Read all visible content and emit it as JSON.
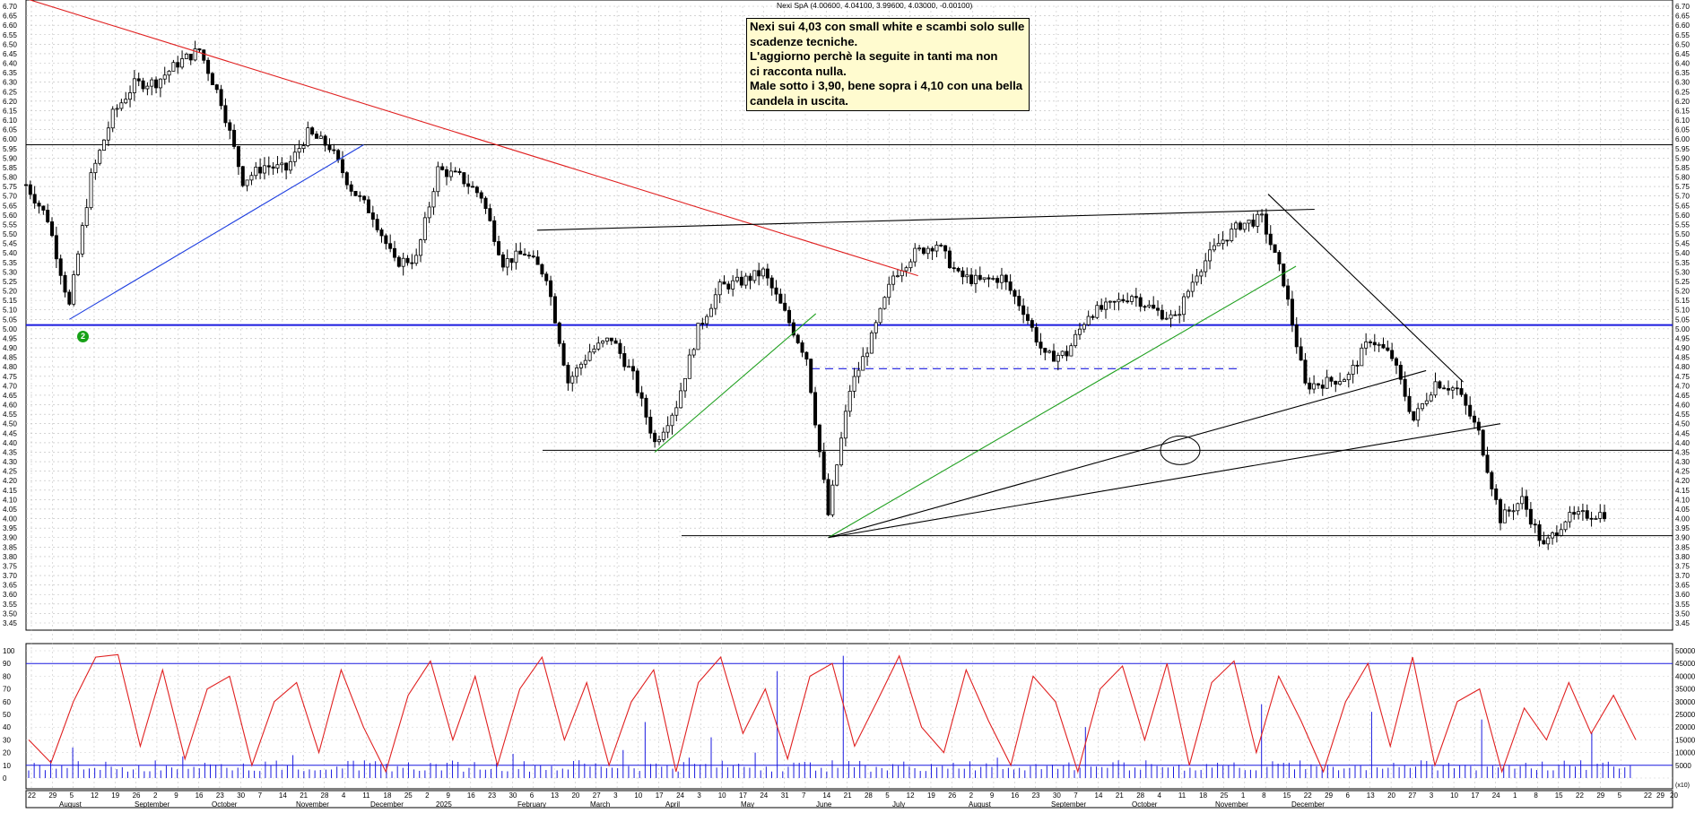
{
  "header": {
    "info": "Nexi SpA (4.00600, 4.04100, 3.99600, 4.03000, -0.00100)"
  },
  "annotation": {
    "lines": [
      "Nexi sui 4,03 con small white e scambi solo sulle",
      "scadenze tecniche.",
      "L'aggiorno perchè la seguite in tanti ma non",
      "ci racconta nulla.",
      "Male sotto i 3,90, bene sopra i 4,10 con una bella",
      "candela in uscita."
    ]
  },
  "signal_badge": "2",
  "colors": {
    "candle": "#000000",
    "resistance_trendline": "#e02020",
    "support_trendline": "#2040e0",
    "channel_line": "#20a020",
    "horizontal_level": "#1a1adf",
    "oscillator_line": "#e02020",
    "oscillator_levels": "#1a1adf",
    "volume_bars": "#1a1adf"
  },
  "price_axis": {
    "ticks": [
      "6.70",
      "6.65",
      "6.60",
      "6.55",
      "6.50",
      "6.45",
      "6.40",
      "6.35",
      "6.30",
      "6.25",
      "6.20",
      "6.15",
      "6.10",
      "6.05",
      "6.00",
      "5.95",
      "5.90",
      "5.85",
      "5.80",
      "5.75",
      "5.70",
      "5.65",
      "5.60",
      "5.55",
      "5.50",
      "5.45",
      "5.40",
      "5.35",
      "5.30",
      "5.25",
      "5.20",
      "5.15",
      "5.10",
      "5.05",
      "5.00",
      "4.95",
      "4.90",
      "4.85",
      "4.80",
      "4.75",
      "4.70",
      "4.65",
      "4.60",
      "4.55",
      "4.50",
      "4.45",
      "4.40",
      "4.35",
      "4.30",
      "4.25",
      "4.20",
      "4.15",
      "4.10",
      "4.05",
      "4.00",
      "3.95",
      "3.90",
      "3.85",
      "3.80",
      "3.75",
      "3.70",
      "3.65",
      "3.60",
      "3.55",
      "3.50",
      "3.45"
    ]
  },
  "oscillator_axis": {
    "ticks": [
      "100",
      "90",
      "80",
      "70",
      "60",
      "50",
      "40",
      "30",
      "20",
      "10",
      "0"
    ]
  },
  "volume_axis": {
    "ticks": [
      "50000",
      "45000",
      "40000",
      "35000",
      "30000",
      "25000",
      "20000",
      "15000",
      "10000",
      "5000"
    ],
    "unit": "(x10)"
  },
  "x_axis": {
    "day_ticks": [
      "22",
      "29",
      "5",
      "12",
      "19",
      "26",
      "2",
      "9",
      "16",
      "23",
      "30",
      "7",
      "14",
      "21",
      "28",
      "4",
      "11",
      "18",
      "25",
      "2",
      "9",
      "16",
      "23",
      "30",
      "6",
      "13",
      "20",
      "27",
      "3",
      "10",
      "17",
      "24",
      "3",
      "10",
      "17",
      "24",
      "31",
      "7",
      "14",
      "21",
      "28",
      "5",
      "12",
      "19",
      "26",
      "2",
      "9",
      "16",
      "23",
      "30",
      "7",
      "14",
      "21",
      "28",
      "4",
      "11",
      "18",
      "25",
      "1",
      "8",
      "15",
      "22",
      "29",
      "6",
      "13",
      "20",
      "27",
      "3",
      "10",
      "17",
      "24",
      "1",
      "8",
      "15",
      "22",
      "29",
      "5"
    ],
    "month_labels": [
      "August",
      "September",
      "October",
      "November",
      "December",
      "2025",
      "February",
      "March",
      "April",
      "May",
      "June",
      "July",
      "August",
      "September",
      "October",
      "November",
      "December"
    ],
    "right_day_labels": [
      "22",
      "29"
    ],
    "right_year_label": "20"
  },
  "chart_data": {
    "type": "candlestick",
    "security": "Nexi SpA",
    "last_bar": {
      "open": 4.006,
      "high": 4.041,
      "low": 3.996,
      "close": 4.03,
      "change": -0.001
    },
    "y_range": [
      3.45,
      6.7
    ],
    "horizontal_levels": [
      5.97,
      5.02,
      4.36,
      3.91
    ],
    "dashed_level": 4.79,
    "trendlines": [
      {
        "kind": "resistance",
        "from": {
          "date": "2024-07-22",
          "price": 6.74
        },
        "to": {
          "date": "2025-05-06",
          "price": 5.28
        }
      },
      {
        "kind": "support",
        "from": {
          "date": "2024-08-05",
          "price": 5.05
        },
        "to": {
          "date": "2024-11-08",
          "price": 5.97
        }
      },
      {
        "kind": "channel",
        "from": {
          "date": "2025-02-10",
          "price": 4.35
        },
        "to": {
          "date": "2025-04-03",
          "price": 5.08
        }
      },
      {
        "kind": "channel",
        "from": {
          "date": "2025-04-07",
          "price": 3.9
        },
        "to": {
          "date": "2025-09-05",
          "price": 5.33
        }
      },
      {
        "kind": "resistance",
        "from": {
          "date": "2025-01-03",
          "price": 5.52
        },
        "to": {
          "date": "2025-09-11",
          "price": 5.63
        }
      },
      {
        "kind": "resistance",
        "from": {
          "date": "2025-08-27",
          "price": 5.71
        },
        "to": {
          "date": "2025-10-29",
          "price": 4.72
        }
      },
      {
        "kind": "support",
        "from": {
          "date": "2025-04-07",
          "price": 3.9
        },
        "to": {
          "date": "2025-10-17",
          "price": 4.78
        }
      },
      {
        "kind": "support",
        "from": {
          "date": "2025-04-07",
          "price": 3.9
        },
        "to": {
          "date": "2025-11-10",
          "price": 4.5
        }
      }
    ],
    "price_series": [
      {
        "date": "2024-07-22",
        "close": 5.76
      },
      {
        "date": "2024-07-29",
        "close": 5.58
      },
      {
        "date": "2024-08-05",
        "close": 5.12
      },
      {
        "date": "2024-08-12",
        "close": 5.8
      },
      {
        "date": "2024-08-19",
        "close": 6.13
      },
      {
        "date": "2024-08-26",
        "close": 6.29
      },
      {
        "date": "2024-09-02",
        "close": 6.3
      },
      {
        "date": "2024-09-09",
        "close": 6.4
      },
      {
        "date": "2024-09-16",
        "close": 6.47
      },
      {
        "date": "2024-09-23",
        "close": 6.2
      },
      {
        "date": "2024-09-30",
        "close": 5.78
      },
      {
        "date": "2024-10-07",
        "close": 5.86
      },
      {
        "date": "2024-10-14",
        "close": 5.84
      },
      {
        "date": "2024-10-21",
        "close": 6.03
      },
      {
        "date": "2024-10-28",
        "close": 5.96
      },
      {
        "date": "2024-11-04",
        "close": 5.74
      },
      {
        "date": "2024-11-11",
        "close": 5.6
      },
      {
        "date": "2024-11-18",
        "close": 5.35
      },
      {
        "date": "2024-11-25",
        "close": 5.37
      },
      {
        "date": "2024-12-02",
        "close": 5.84
      },
      {
        "date": "2024-12-09",
        "close": 5.8
      },
      {
        "date": "2024-12-16",
        "close": 5.7
      },
      {
        "date": "2024-12-23",
        "close": 5.35
      },
      {
        "date": "2024-12-30",
        "close": 5.4
      },
      {
        "date": "2025-01-06",
        "close": 5.28
      },
      {
        "date": "2025-01-13",
        "close": 4.72
      },
      {
        "date": "2025-01-20",
        "close": 4.88
      },
      {
        "date": "2025-01-27",
        "close": 4.95
      },
      {
        "date": "2025-02-03",
        "close": 4.75
      },
      {
        "date": "2025-02-10",
        "close": 4.4
      },
      {
        "date": "2025-02-17",
        "close": 4.6
      },
      {
        "date": "2025-02-24",
        "close": 5.0
      },
      {
        "date": "2025-03-03",
        "close": 5.22
      },
      {
        "date": "2025-03-10",
        "close": 5.25
      },
      {
        "date": "2025-03-17",
        "close": 5.3
      },
      {
        "date": "2025-03-24",
        "close": 5.08
      },
      {
        "date": "2025-03-31",
        "close": 4.85
      },
      {
        "date": "2025-04-07",
        "close": 4.02
      },
      {
        "date": "2025-04-14",
        "close": 4.68
      },
      {
        "date": "2025-04-21",
        "close": 4.95
      },
      {
        "date": "2025-04-28",
        "close": 5.28
      },
      {
        "date": "2025-05-05",
        "close": 5.4
      },
      {
        "date": "2025-05-12",
        "close": 5.45
      },
      {
        "date": "2025-05-19",
        "close": 5.28
      },
      {
        "date": "2025-05-26",
        "close": 5.25
      },
      {
        "date": "2025-06-02",
        "close": 5.27
      },
      {
        "date": "2025-06-09",
        "close": 5.1
      },
      {
        "date": "2025-06-16",
        "close": 4.85
      },
      {
        "date": "2025-06-23",
        "close": 4.87
      },
      {
        "date": "2025-06-30",
        "close": 5.08
      },
      {
        "date": "2025-07-07",
        "close": 5.12
      },
      {
        "date": "2025-07-14",
        "close": 5.18
      },
      {
        "date": "2025-07-21",
        "close": 5.1
      },
      {
        "date": "2025-07-28",
        "close": 5.05
      },
      {
        "date": "2025-08-04",
        "close": 5.3
      },
      {
        "date": "2025-08-11",
        "close": 5.45
      },
      {
        "date": "2025-08-18",
        "close": 5.55
      },
      {
        "date": "2025-08-25",
        "close": 5.58
      },
      {
        "date": "2025-09-01",
        "close": 5.25
      },
      {
        "date": "2025-09-08",
        "close": 4.7
      },
      {
        "date": "2025-09-15",
        "close": 4.72
      },
      {
        "date": "2025-09-22",
        "close": 4.75
      },
      {
        "date": "2025-09-29",
        "close": 4.95
      },
      {
        "date": "2025-10-06",
        "close": 4.85
      },
      {
        "date": "2025-10-13",
        "close": 4.52
      },
      {
        "date": "2025-10-20",
        "close": 4.72
      },
      {
        "date": "2025-10-27",
        "close": 4.68
      },
      {
        "date": "2025-11-03",
        "close": 4.45
      },
      {
        "date": "2025-11-10",
        "close": 4.0
      },
      {
        "date": "2025-11-17",
        "close": 4.1
      },
      {
        "date": "2025-11-24",
        "close": 3.85
      },
      {
        "date": "2025-12-01",
        "close": 4.0
      },
      {
        "date": "2025-12-08",
        "close": 4.02
      },
      {
        "date": "2025-12-15",
        "close": 4.03
      }
    ],
    "oscillator": {
      "range": [
        0,
        100
      ],
      "levels": [
        90,
        10
      ],
      "series": [
        30,
        12,
        60,
        95,
        97,
        25,
        85,
        15,
        70,
        80,
        10,
        60,
        75,
        20,
        85,
        40,
        5,
        65,
        92,
        30,
        80,
        10,
        70,
        95,
        30,
        75,
        10,
        60,
        85,
        5,
        75,
        95,
        35,
        70,
        15,
        80,
        90,
        25,
        60,
        96,
        40,
        20,
        85,
        45,
        10,
        80,
        60,
        5,
        70,
        88,
        30,
        90,
        10,
        75,
        92,
        20,
        80,
        45,
        5,
        60,
        90,
        25,
        95,
        10,
        60,
        70,
        5,
        55,
        30,
        75,
        35,
        65,
        30
      ]
    },
    "volume": {
      "unit": "x10",
      "range": [
        0,
        50000
      ],
      "series": [
        3000,
        7000,
        12000,
        4000,
        3500,
        5000,
        3000,
        8500,
        6000,
        4000,
        3000,
        5000,
        9000,
        3000,
        4500,
        3000,
        5500,
        4000,
        3000,
        6000,
        4000,
        3500,
        9500,
        5000,
        3000,
        7000,
        4500,
        11000,
        22000,
        5000,
        8000,
        16000,
        5000,
        10000,
        42000,
        6000,
        4000,
        48000,
        5000,
        3000,
        4500,
        5500,
        6000,
        3000,
        8000,
        4000,
        3500,
        5000,
        20000,
        4000,
        3000,
        5500,
        4500,
        3000,
        6000,
        4000,
        29000,
        6000,
        3500,
        5000,
        4000,
        26000,
        6000,
        4500,
        3000,
        5000,
        23000,
        4500,
        6000,
        3000,
        5000,
        18000,
        4500
      ]
    }
  }
}
